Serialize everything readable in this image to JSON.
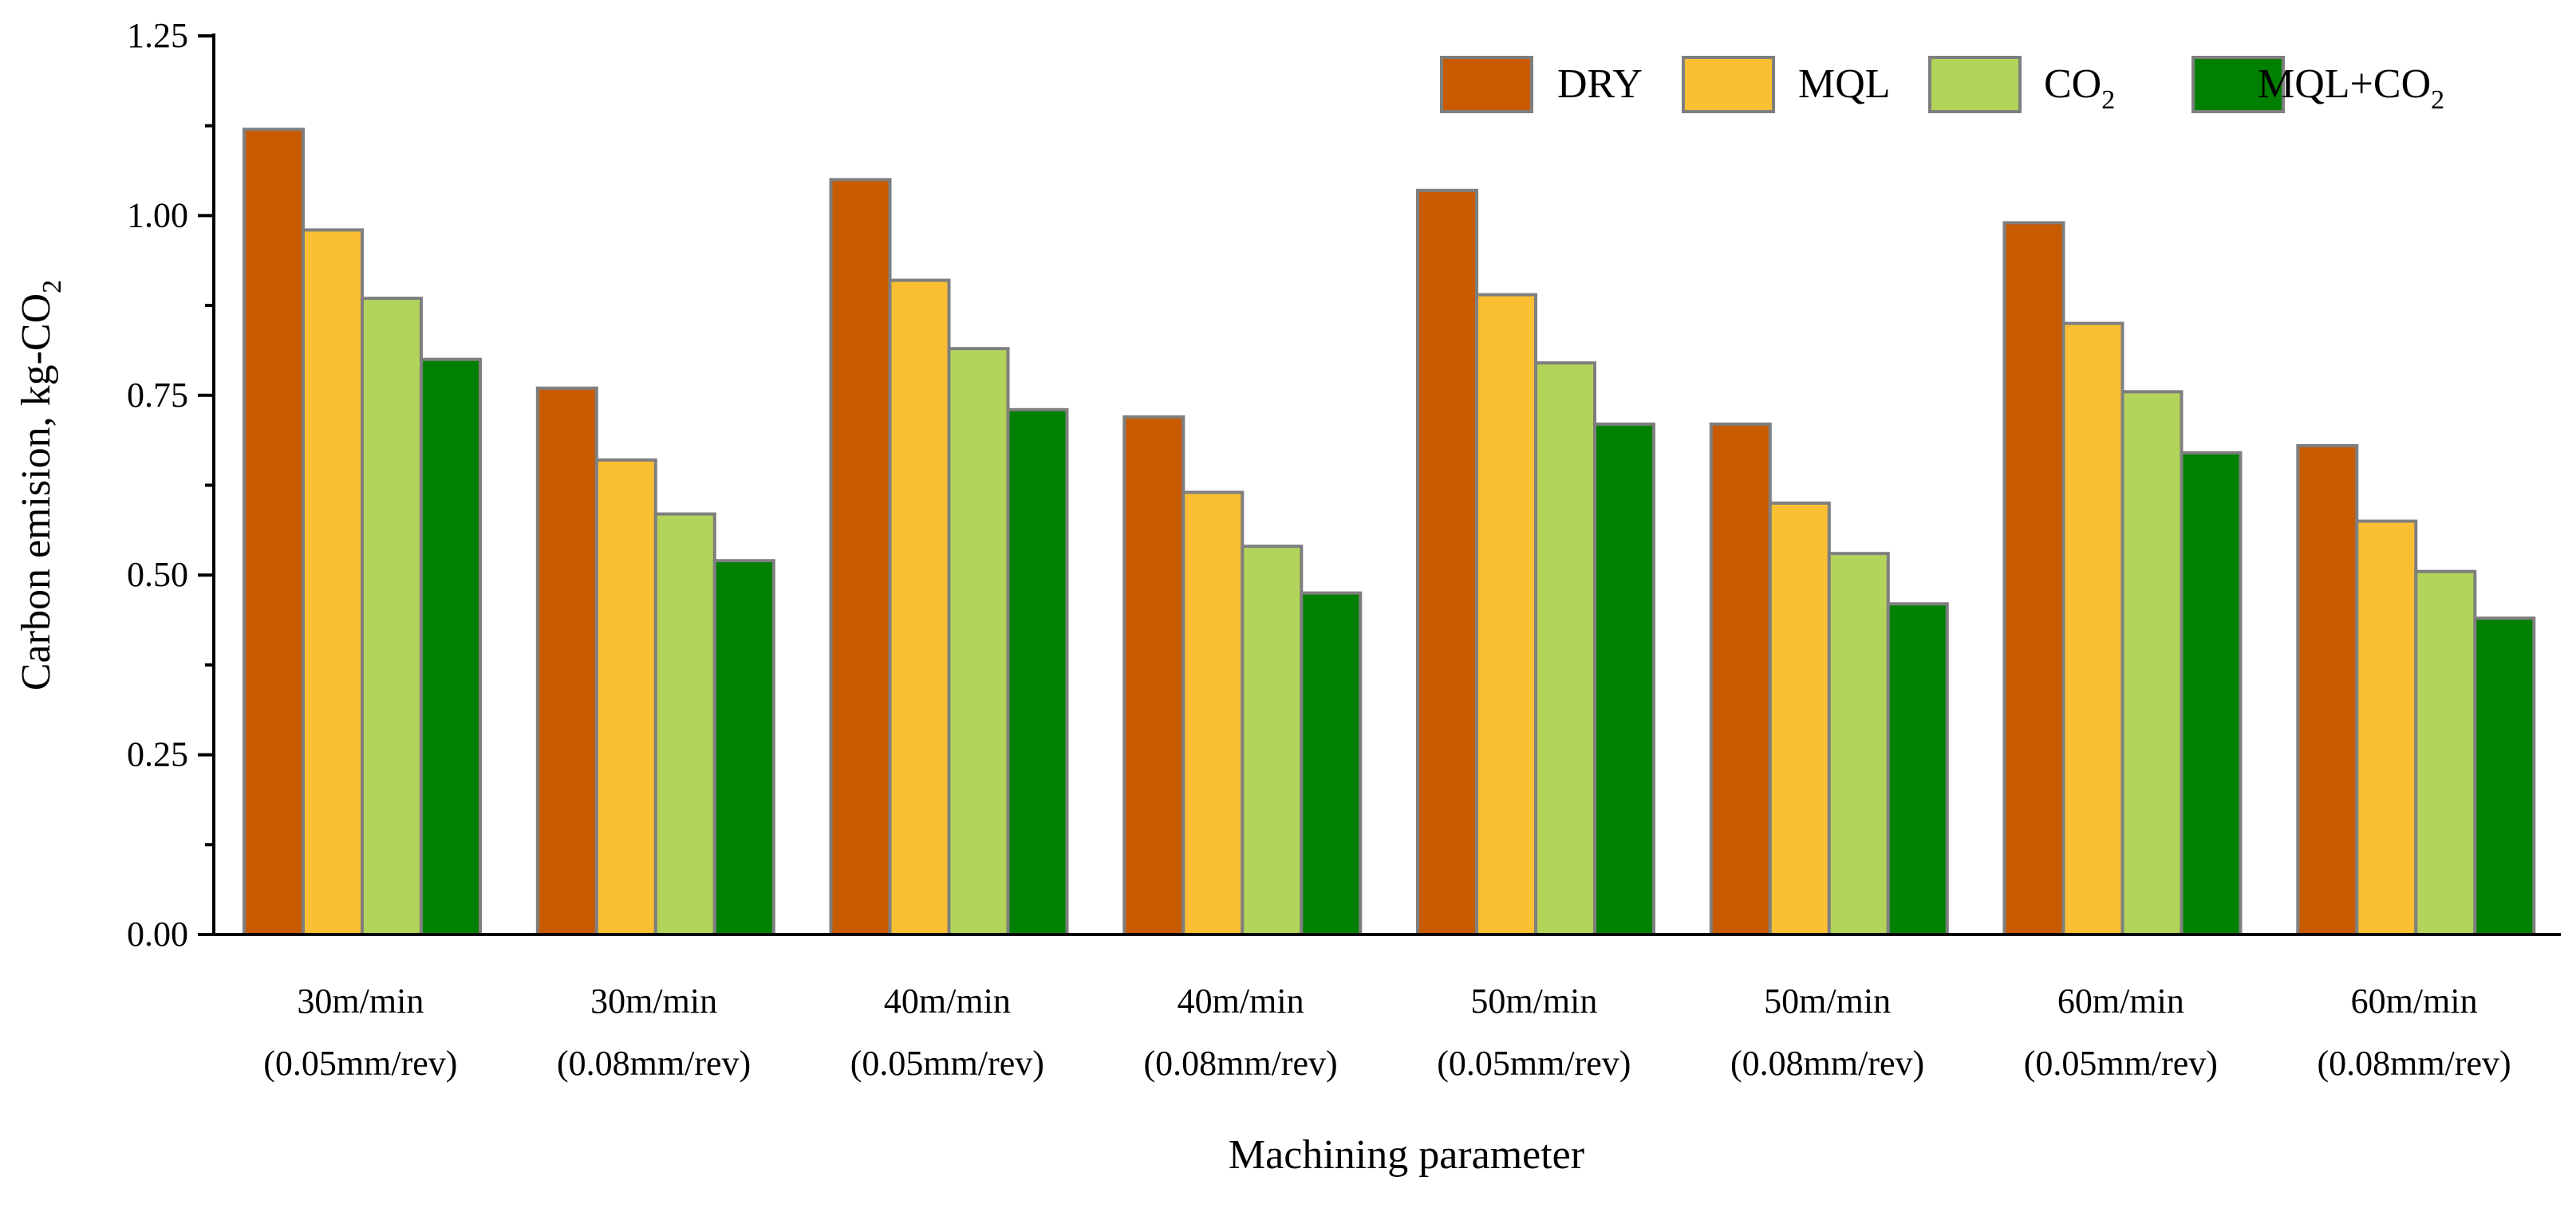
{
  "chart_data": {
    "type": "bar",
    "xlabel": "Machining parameter",
    "ylabel": {
      "text": "Carbon emision, kg-CO",
      "sub": "2"
    },
    "ylim": [
      0,
      1.25
    ],
    "yticks": [
      "0.00",
      "0.25",
      "0.50",
      "0.75",
      "1.00",
      "1.25"
    ],
    "ytick_values": [
      0,
      0.25,
      0.5,
      0.75,
      1.0,
      1.25
    ],
    "grid": false,
    "legend_position": "top-right",
    "categories": [
      {
        "line1": "30m/min",
        "line2": "(0.05mm/rev)"
      },
      {
        "line1": "30m/min",
        "line2": "(0.08mm/rev)"
      },
      {
        "line1": "40m/min",
        "line2": "(0.05mm/rev)"
      },
      {
        "line1": "40m/min",
        "line2": "(0.08mm/rev)"
      },
      {
        "line1": "50m/min",
        "line2": "(0.05mm/rev)"
      },
      {
        "line1": "50m/min",
        "line2": "(0.08mm/rev)"
      },
      {
        "line1": "60m/min",
        "line2": "(0.05mm/rev)"
      },
      {
        "line1": "60m/min",
        "line2": "(0.08mm/rev)"
      }
    ],
    "series": [
      {
        "name": "DRY",
        "sub": "",
        "suffix": "",
        "color": "#c85a00",
        "values": [
          1.12,
          0.76,
          1.05,
          0.72,
          1.035,
          0.71,
          0.99,
          0.68
        ]
      },
      {
        "name": "MQL",
        "sub": "",
        "suffix": "",
        "color": "#fbbf33",
        "values": [
          0.98,
          0.66,
          0.91,
          0.615,
          0.89,
          0.6,
          0.85,
          0.575
        ]
      },
      {
        "name": "CO",
        "sub": "2",
        "suffix": "",
        "color": "#b2d45a",
        "values": [
          0.885,
          0.585,
          0.815,
          0.54,
          0.795,
          0.53,
          0.755,
          0.505
        ]
      },
      {
        "name": "MQL+CO",
        "sub": "2",
        "suffix": "",
        "color": "#008000",
        "values": [
          0.8,
          0.52,
          0.73,
          0.475,
          0.71,
          0.46,
          0.67,
          0.44
        ]
      }
    ],
    "bar_edge_color": "#7f7f7f"
  }
}
